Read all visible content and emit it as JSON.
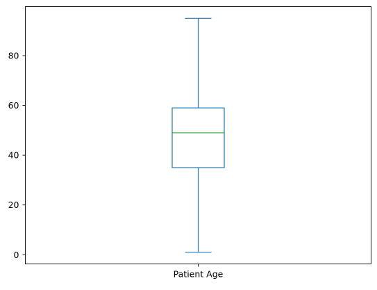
{
  "chart_data": {
    "type": "box",
    "categories": [
      "Patient Age"
    ],
    "boxes": [
      {
        "label": "Patient Age",
        "whisker_low": 1,
        "q1": 35,
        "median": 49,
        "q3": 59,
        "whisker_high": 95
      }
    ],
    "ylim": [
      -3.7,
      99.7
    ],
    "yticks": [
      0,
      20,
      40,
      60,
      80
    ],
    "grid": false,
    "colors": {
      "box": "#1f77b4",
      "median": "#2ca02c",
      "axes": "#000000"
    }
  }
}
